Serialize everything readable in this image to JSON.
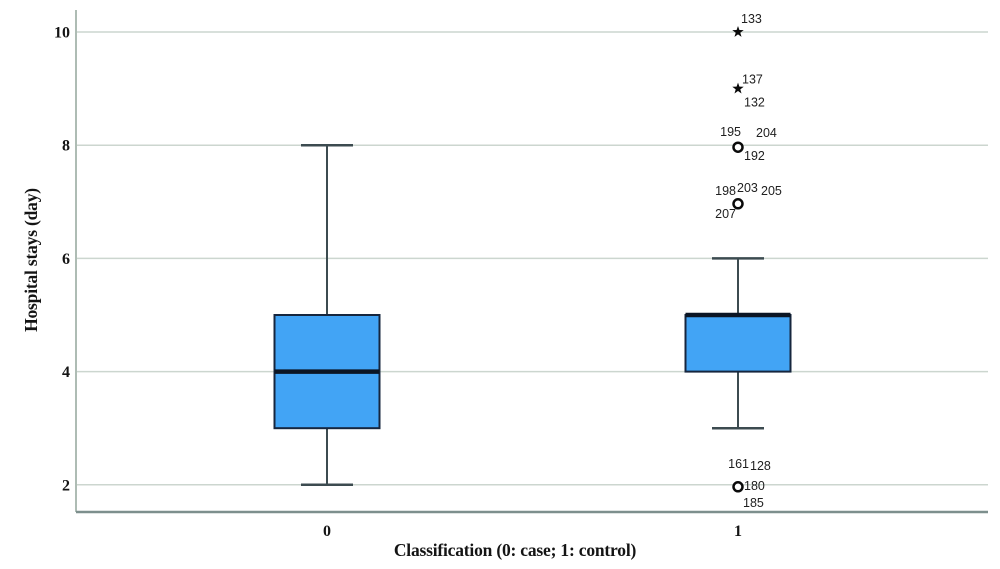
{
  "chart_data": {
    "type": "boxplot",
    "title": "",
    "xlabel": "Classification (0: case; 1: control)",
    "ylabel": "Hospital stays (day)",
    "categories": [
      "0",
      "1"
    ],
    "yticks": [
      2,
      4,
      6,
      8,
      10
    ],
    "ylim": [
      1.5,
      10.4
    ],
    "grid": "horizontal",
    "legend": "none",
    "boxes": [
      {
        "category": "0",
        "whisker_low": 2,
        "q1": 3,
        "median": 4,
        "q3": 5,
        "whisker_high": 8,
        "outliers": []
      },
      {
        "category": "1",
        "whisker_low": 3,
        "q1": 4,
        "median": 5,
        "q3": 5,
        "whisker_high": 6,
        "outliers": [
          {
            "value": 10,
            "marker": "star",
            "case_labels": [
              {
                "text": "133",
                "dx": 3,
                "dy": -9,
                "align": "start"
              }
            ]
          },
          {
            "value": 9,
            "marker": "star",
            "case_labels": [
              {
                "text": "137",
                "dx": 4,
                "dy": -5,
                "align": "start"
              },
              {
                "text": "132",
                "dx": 6,
                "dy": 18,
                "align": "start"
              }
            ]
          },
          {
            "value": 8,
            "marker": "circle",
            "case_labels": [
              {
                "text": "195",
                "dx": 3,
                "dy": -9,
                "align": "end"
              },
              {
                "text": "204",
                "dx": 18,
                "dy": -8,
                "align": "start"
              },
              {
                "text": "192",
                "dx": 6,
                "dy": 15,
                "align": "start"
              }
            ]
          },
          {
            "value": 7,
            "marker": "circle",
            "case_labels": [
              {
                "text": "198",
                "dx": -2,
                "dy": -7,
                "align": "end"
              },
              {
                "text": "203",
                "dx": -1,
                "dy": -10,
                "align": "start"
              },
              {
                "text": "205",
                "dx": 23,
                "dy": -7,
                "align": "start"
              },
              {
                "text": "207",
                "dx": -2,
                "dy": 16,
                "align": "end"
              }
            ]
          },
          {
            "value": 2,
            "marker": "circle",
            "case_labels": [
              {
                "text": "161",
                "dx": 11,
                "dy": -17,
                "align": "end"
              },
              {
                "text": "128",
                "dx": 12,
                "dy": -15,
                "align": "start"
              },
              {
                "text": "180",
                "dx": 6,
                "dy": 5,
                "align": "start"
              },
              {
                "text": "185",
                "dx": 5,
                "dy": 22,
                "align": "start"
              }
            ]
          }
        ]
      }
    ],
    "colors": {
      "box_fill": "#42a4f5",
      "box_border": "#16263e",
      "median": "#0b1524",
      "whisker": "#3c4b50",
      "gridline": "#ccd6cf",
      "y_axis_line": "#aebcb4",
      "x_axis_line": "#7d8f8d",
      "tick_text": "#141414",
      "outlier_label_text": "#202020",
      "marker": "#0a0a0a"
    }
  }
}
